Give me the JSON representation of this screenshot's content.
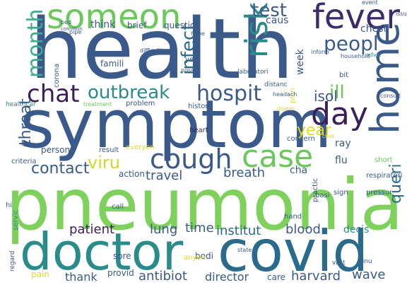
{
  "word_cloud": {
    "background": "#ffffff",
    "words": [
      {
        "id": "health",
        "text": "health",
        "color": "#3b5a8c"
      },
      {
        "id": "symptom",
        "text": "symptom",
        "color": "#3b5a8c"
      },
      {
        "id": "pneumonia",
        "text": "pneumonia",
        "color": "#7ed25c"
      },
      {
        "id": "doctor",
        "text": "doctor",
        "color": "#2a8c8a"
      },
      {
        "id": "covid",
        "text": "covid",
        "color": "#2a6a8c"
      },
      {
        "id": "home",
        "text": "home",
        "color": "#3b5a8c"
      },
      {
        "id": "case",
        "text": "case",
        "color": "#6ac95a"
      },
      {
        "id": "someon",
        "text": "someon",
        "color": "#6ac95a"
      },
      {
        "id": "fever",
        "text": "fever",
        "color": "#3b2d6b"
      },
      {
        "id": "day",
        "text": "day",
        "color": "#3b1e5c"
      },
      {
        "id": "cough",
        "text": "cough",
        "color": "#3b5a8c"
      },
      {
        "id": "risk",
        "text": "risk",
        "color": "#2a8c8a"
      },
      {
        "id": "chat",
        "text": "chat",
        "color": "#3b1e5c"
      },
      {
        "id": "hospit",
        "text": "hospit",
        "color": "#3b5a8c"
      },
      {
        "id": "month",
        "text": "month",
        "color": "#3bae8c"
      },
      {
        "id": "outbreak",
        "text": "outbreak",
        "color": "#2a8c8a"
      },
      {
        "id": "peopl",
        "text": "peopl",
        "color": "#3b5a8c"
      },
      {
        "id": "test",
        "text": "test",
        "color": "#3b5a8c"
      },
      {
        "id": "infect",
        "text": "infect",
        "color": "#2a6a8c"
      },
      {
        "id": "ill",
        "text": "ill",
        "color": "#6ac95a"
      },
      {
        "id": "contact",
        "text": "contact",
        "color": "#3b5a8c"
      },
      {
        "id": "viru",
        "text": "viru",
        "color": "#d4d82a"
      },
      {
        "id": "year",
        "text": "year",
        "color": "#e3d82a"
      },
      {
        "id": "throat",
        "text": "throat",
        "color": "#3b5a8c"
      },
      {
        "id": "isol",
        "text": "isol",
        "color": "#3b5a8c"
      },
      {
        "id": "queri",
        "text": "queri",
        "color": "#2a6a8c"
      },
      {
        "id": "travel",
        "text": "travel",
        "color": "#3b5a8c"
      },
      {
        "id": "breath",
        "text": "breath",
        "color": "#3b5a8c"
      },
      {
        "id": "patient",
        "text": "patient",
        "color": "#3b1e5c"
      },
      {
        "id": "lung",
        "text": "lung",
        "color": "#3b5a8c"
      },
      {
        "id": "time",
        "text": "time",
        "color": "#3b5a8c"
      },
      {
        "id": "institut",
        "text": "institut",
        "color": "#2a6a8c"
      },
      {
        "id": "blood",
        "text": "blood",
        "color": "#3b5a8c"
      },
      {
        "id": "antibiot",
        "text": "antibiot",
        "color": "#3b5a8c"
      },
      {
        "id": "thank",
        "text": "thank",
        "color": "#3b5a8c"
      },
      {
        "id": "director",
        "text": "director",
        "color": "#3b5a8c"
      },
      {
        "id": "harvard",
        "text": "harvard",
        "color": "#3b5a8c"
      },
      {
        "id": "wave",
        "text": "wave",
        "color": "#3b5a8c"
      },
      {
        "id": "decis",
        "text": "decis",
        "color": "#2a8c8a"
      },
      {
        "id": "week",
        "text": "week",
        "color": "#3b5a8c"
      },
      {
        "id": "caus",
        "text": "caus",
        "color": "#3b5a8c"
      },
      {
        "id": "think",
        "text": "think",
        "color": "#3b5a8c"
      },
      {
        "id": "brief",
        "text": "brief",
        "color": "#3b5a8c"
      },
      {
        "id": "question",
        "text": "question",
        "color": "#3b5a8c"
      },
      {
        "id": "chest",
        "text": "chest",
        "color": "#3b5a8c"
      },
      {
        "id": "flu",
        "text": "flu",
        "color": "#3b5a8c"
      },
      {
        "id": "ray",
        "text": "ray",
        "color": "#3b5a8c"
      },
      {
        "id": "cha",
        "text": "cha",
        "color": "#3b5a8c"
      },
      {
        "id": "person",
        "text": "person",
        "color": "#3b5a8c"
      },
      {
        "id": "action",
        "text": "action",
        "color": "#3b5a8c"
      },
      {
        "id": "pain",
        "text": "pain",
        "color": "#e3d82a"
      },
      {
        "id": "sore",
        "text": "sore",
        "color": "#3b5a8c"
      },
      {
        "id": "provid",
        "text": "provid",
        "color": "#3b5a8c"
      },
      {
        "id": "care",
        "text": "care",
        "color": "#3b5a8c"
      },
      {
        "id": "bodi",
        "text": "bodi",
        "color": "#3b5a8c"
      },
      {
        "id": "anyon",
        "text": "anyon",
        "color": "#e3d82a"
      },
      {
        "id": "famili",
        "text": "famili",
        "color": "#3b5a8c"
      },
      {
        "id": "corona",
        "text": "corona",
        "color": "#3b5a8c"
      },
      {
        "id": "problem",
        "text": "problem",
        "color": "#3b5a8c"
      },
      {
        "id": "histori",
        "text": "histori",
        "color": "#3b5a8c"
      },
      {
        "id": "heart",
        "text": "heart",
        "color": "#3b1e5c"
      },
      {
        "id": "plan",
        "text": "plan",
        "color": "#e3d82a"
      },
      {
        "id": "concern",
        "text": "concern",
        "color": "#3b5a8c"
      },
      {
        "id": "result",
        "text": "result",
        "color": "#3b5a8c"
      },
      {
        "id": "everyon",
        "text": "everyon",
        "color": "#e3d82a"
      },
      {
        "id": "criteria",
        "text": "criteria",
        "color": "#3b5a8c"
      },
      {
        "id": "bit",
        "text": "bit",
        "color": "#3b5a8c"
      },
      {
        "id": "short",
        "text": "short",
        "color": "#6ac95a"
      },
      {
        "id": "sign",
        "text": "sign",
        "color": "#3b5a8c"
      },
      {
        "id": "respiratori",
        "text": "respiratori",
        "color": "#3b5a8c"
      },
      {
        "id": "pressur",
        "text": "pressur",
        "color": "#3b5a8c"
      },
      {
        "id": "basi",
        "text": "basi",
        "color": "#3b5a8c"
      },
      {
        "id": "practic",
        "text": "practic",
        "color": "#3b5a8c"
      },
      {
        "id": "hand",
        "text": "hand",
        "color": "#3b5a8c"
      },
      {
        "id": "call",
        "text": "call",
        "color": "#3b5a8c"
      },
      {
        "id": "hi",
        "text": "hi",
        "color": "#3b5a8c"
      },
      {
        "id": "servic",
        "text": "servic",
        "color": "#2a8c8a"
      },
      {
        "id": "regard",
        "text": "regard",
        "color": "#3b5a8c"
      },
      {
        "id": "state",
        "text": "state",
        "color": "#3b5a8c"
      },
      {
        "id": "visit",
        "text": "visit",
        "color": "#3b5a8c"
      },
      {
        "id": "sinu",
        "text": "sinu",
        "color": "#3b5a8c"
      },
      {
        "id": "laboratori",
        "text": "laboratori",
        "color": "#3b5a8c"
      },
      {
        "id": "distanc",
        "text": "distanc",
        "color": "#3b5a8c"
      },
      {
        "id": "headach",
        "text": "headach",
        "color": "#3b5a8c"
      },
      {
        "id": "diseas",
        "text": "diseas",
        "color": "#e3d82a"
      },
      {
        "id": "healthcar",
        "text": "healthcar",
        "color": "#2a8c8a"
      },
      {
        "id": "treatment",
        "text": "treatment",
        "color": "#6ac95a"
      },
      {
        "id": "inform",
        "text": "inform",
        "color": "#3b5a8c"
      },
      {
        "id": "household",
        "text": "household",
        "color": "#3b5a8c"
      },
      {
        "id": "advic",
        "text": "advic",
        "color": "#2a8c8a"
      },
      {
        "id": "consult",
        "text": "consult",
        "color": "#3b5a8c"
      },
      {
        "id": "event",
        "text": "event",
        "color": "#3b5a8c"
      },
      {
        "id": "issu",
        "text": "issu",
        "color": "#3b5a8c"
      },
      {
        "id": "hope",
        "text": "hope",
        "color": "#3b5a8c"
      },
      {
        "id": "bed",
        "text": "bed",
        "color": "#3b5a8c"
      },
      {
        "id": "commun",
        "text": "commun",
        "color": "#3b5a8c"
      },
      {
        "id": "pipe",
        "text": "pipe",
        "color": "#3b5a8c"
      },
      {
        "id": "stay",
        "text": "stay",
        "color": "#3b5a8c"
      },
      {
        "id": "difficulti",
        "text": "difficulti",
        "color": "#3b5a8c"
      },
      {
        "id": "ye",
        "text": "ye",
        "color": "#3b5a8c"
      },
      {
        "id": "possibl",
        "text": "possibl",
        "color": "#3b5a8c"
      },
      {
        "id": "child",
        "text": "child",
        "color": "#e3d82a"
      }
    ]
  }
}
